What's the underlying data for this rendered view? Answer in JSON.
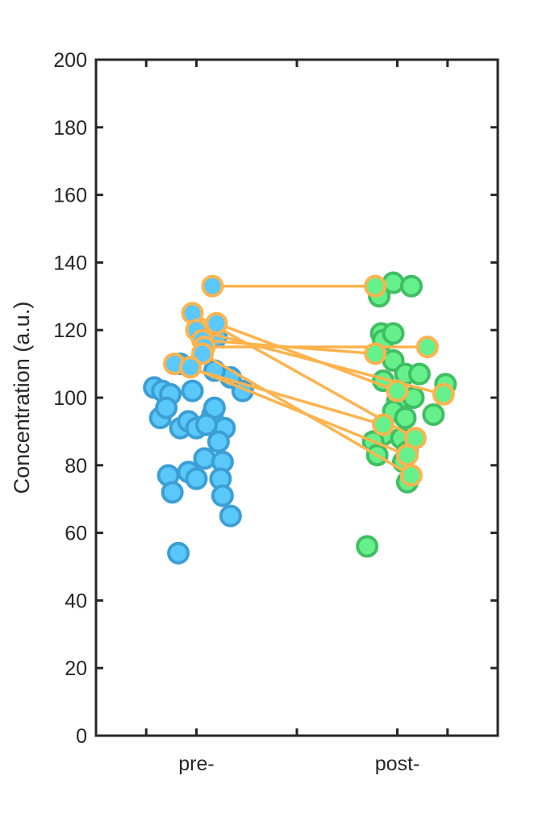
{
  "chart_data": {
    "type": "scatter",
    "title": "",
    "xlabel": "",
    "ylabel": "Concentration (a.u.)",
    "ylim": [
      0,
      200
    ],
    "yticks": [
      0,
      20,
      40,
      60,
      80,
      100,
      120,
      140,
      160,
      180,
      200
    ],
    "categories": [
      "pre-",
      "post-"
    ],
    "grid": false,
    "legend": "none",
    "colors": {
      "pre_fill": "#5ac8fa",
      "pre_edge": "#3b9fd6",
      "post_fill": "#66f08c",
      "post_edge": "#3fbf62",
      "paired_fill": "#ffffff",
      "paired_edge": "#ffb34d",
      "axis": "#262626"
    },
    "series": [
      {
        "category": "pre-",
        "points": [
          {
            "x": 0.79,
            "y": 103
          },
          {
            "x": 0.83,
            "y": 102
          },
          {
            "x": 0.87,
            "y": 101
          },
          {
            "x": 0.92,
            "y": 110
          },
          {
            "x": 0.98,
            "y": 102
          },
          {
            "x": 0.82,
            "y": 94
          },
          {
            "x": 0.85,
            "y": 97
          },
          {
            "x": 0.92,
            "y": 91
          },
          {
            "x": 0.96,
            "y": 93
          },
          {
            "x": 1.0,
            "y": 91
          },
          {
            "x": 1.08,
            "y": 95
          },
          {
            "x": 1.14,
            "y": 91
          },
          {
            "x": 1.09,
            "y": 97
          },
          {
            "x": 1.05,
            "y": 92
          },
          {
            "x": 1.11,
            "y": 87
          },
          {
            "x": 1.04,
            "y": 82
          },
          {
            "x": 1.13,
            "y": 81
          },
          {
            "x": 0.86,
            "y": 77
          },
          {
            "x": 0.96,
            "y": 78
          },
          {
            "x": 1.0,
            "y": 76
          },
          {
            "x": 1.12,
            "y": 76
          },
          {
            "x": 0.88,
            "y": 72
          },
          {
            "x": 1.13,
            "y": 71
          },
          {
            "x": 1.17,
            "y": 65
          },
          {
            "x": 0.91,
            "y": 54
          },
          {
            "x": 1.17,
            "y": 106
          },
          {
            "x": 1.23,
            "y": 102
          },
          {
            "x": 1.09,
            "y": 108
          },
          {
            "x": 1.05,
            "y": 119
          },
          {
            "x": 1.1,
            "y": 118
          }
        ]
      },
      {
        "category": "post-",
        "points": [
          {
            "x": 1.91,
            "y": 130
          },
          {
            "x": 1.98,
            "y": 134
          },
          {
            "x": 2.07,
            "y": 133
          },
          {
            "x": 1.92,
            "y": 119
          },
          {
            "x": 1.93,
            "y": 117
          },
          {
            "x": 1.98,
            "y": 119
          },
          {
            "x": 1.98,
            "y": 111
          },
          {
            "x": 1.93,
            "y": 105
          },
          {
            "x": 2.0,
            "y": 99
          },
          {
            "x": 2.08,
            "y": 100
          },
          {
            "x": 2.04,
            "y": 107
          },
          {
            "x": 2.11,
            "y": 107
          },
          {
            "x": 2.24,
            "y": 104
          },
          {
            "x": 1.98,
            "y": 96
          },
          {
            "x": 2.04,
            "y": 94
          },
          {
            "x": 1.93,
            "y": 89
          },
          {
            "x": 1.88,
            "y": 87
          },
          {
            "x": 2.02,
            "y": 88
          },
          {
            "x": 1.9,
            "y": 83
          },
          {
            "x": 2.05,
            "y": 84
          },
          {
            "x": 2.03,
            "y": 81
          },
          {
            "x": 2.05,
            "y": 75
          },
          {
            "x": 1.85,
            "y": 56
          },
          {
            "x": 2.18,
            "y": 95
          }
        ]
      }
    ],
    "paired": [
      {
        "pre": {
          "x": 1.08,
          "y": 133
        },
        "post": {
          "x": 1.89,
          "y": 133
        }
      },
      {
        "pre": {
          "x": 0.98,
          "y": 125
        },
        "post": {
          "x": 2.09,
          "y": 88
        }
      },
      {
        "pre": {
          "x": 1.1,
          "y": 122
        },
        "post": {
          "x": 2.0,
          "y": 102
        }
      },
      {
        "pre": {
          "x": 1.0,
          "y": 120
        },
        "post": {
          "x": 2.23,
          "y": 101
        }
      },
      {
        "pre": {
          "x": 1.03,
          "y": 117
        },
        "post": {
          "x": 1.89,
          "y": 113
        }
      },
      {
        "pre": {
          "x": 1.04,
          "y": 115
        },
        "post": {
          "x": 2.15,
          "y": 115
        }
      },
      {
        "pre": {
          "x": 1.03,
          "y": 113
        },
        "post": {
          "x": 2.07,
          "y": 77
        }
      },
      {
        "pre": {
          "x": 0.89,
          "y": 110
        },
        "post": {
          "x": 1.93,
          "y": 92
        }
      },
      {
        "pre": {
          "x": 0.97,
          "y": 109
        },
        "post": {
          "x": 2.05,
          "y": 83
        }
      }
    ]
  }
}
